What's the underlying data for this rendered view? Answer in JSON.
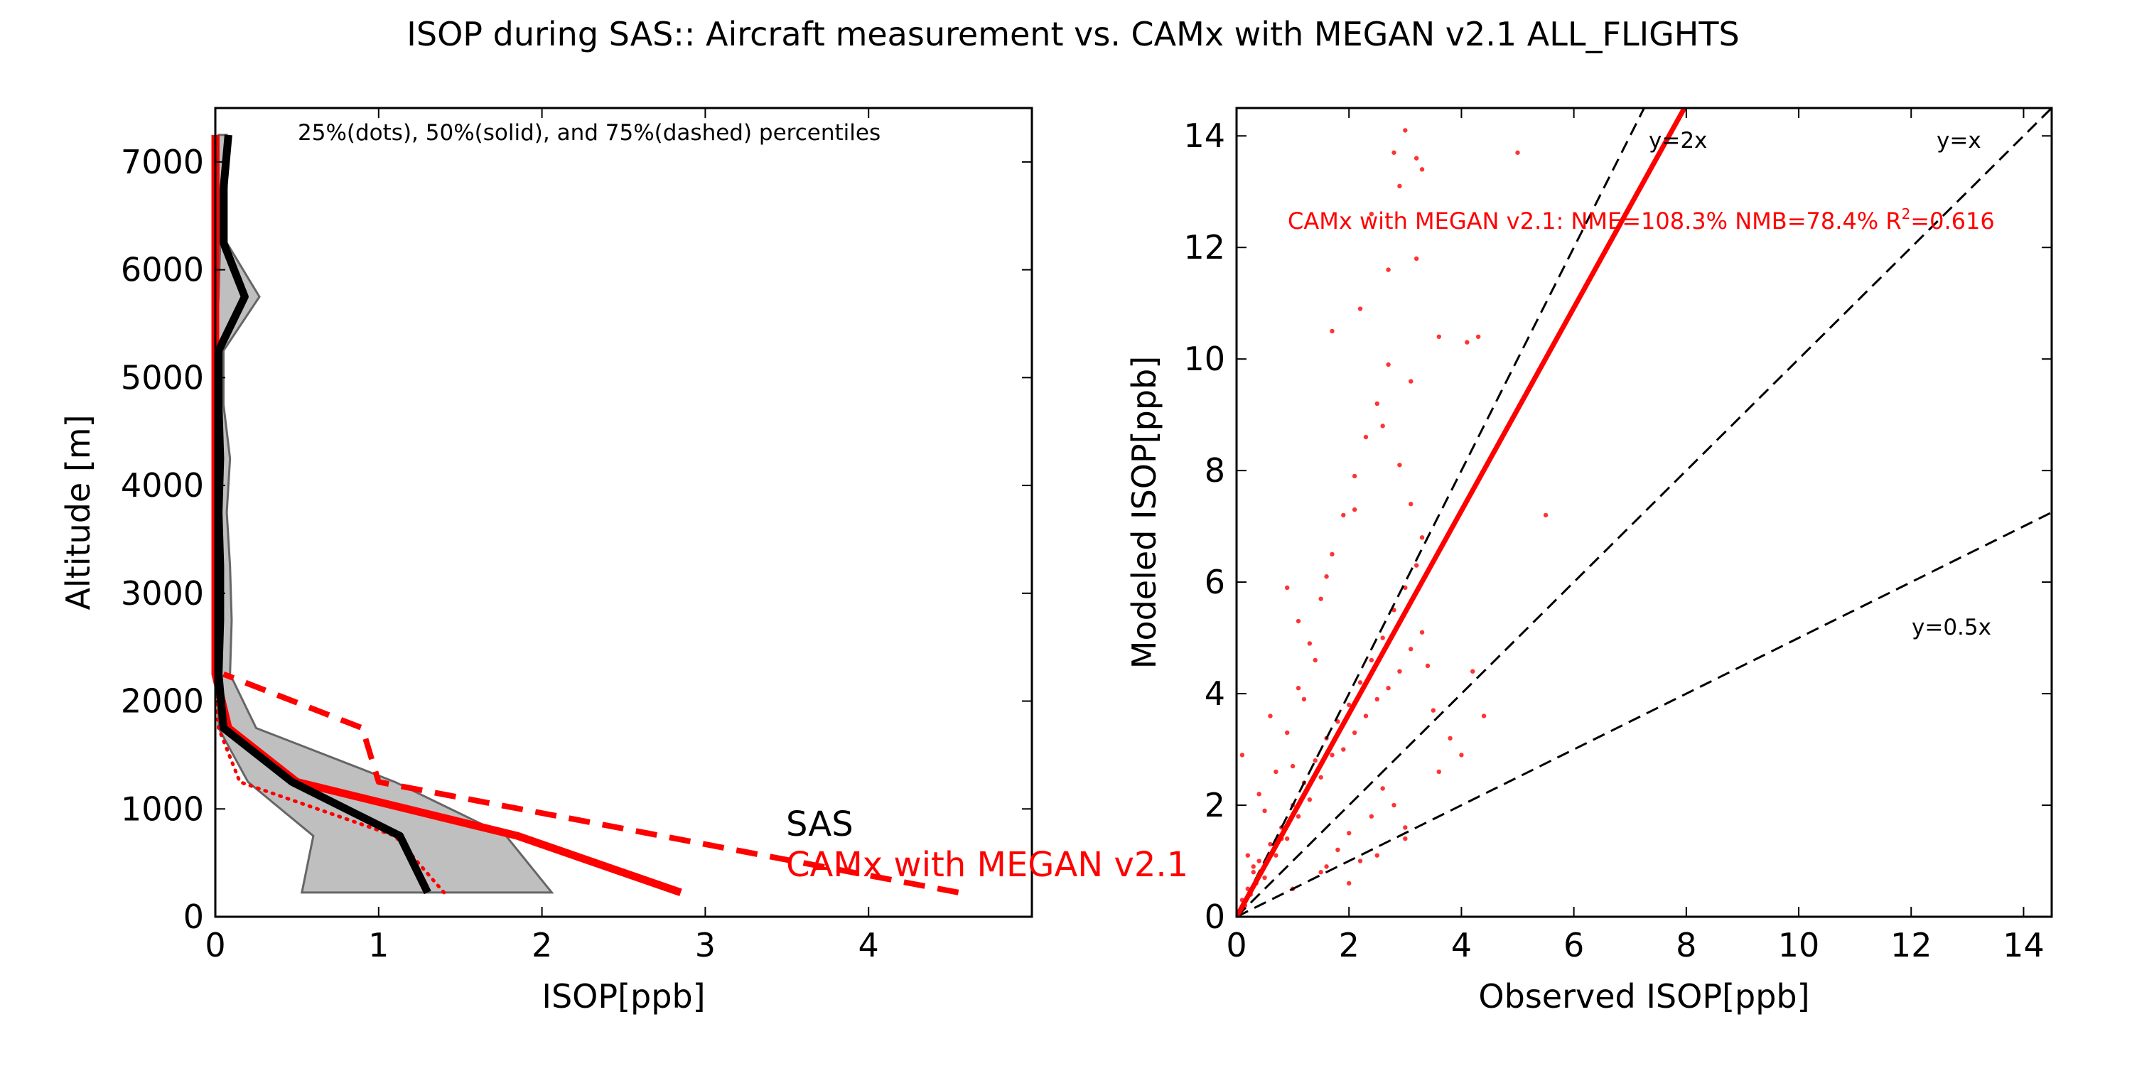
{
  "figure": {
    "title": "ISOP during SAS:: Aircraft measurement vs. CAMx with MEGAN v2.1 ALL_FLIGHTS"
  },
  "colors": {
    "obs": "#000000",
    "model": "#ff0000",
    "band_fill": "#bfbfbf",
    "band_edge": "#666666",
    "ref_lines": "#000000"
  },
  "chart_data": [
    {
      "type": "line",
      "xlabel": "ISOP[ppb]",
      "ylabel": "Altitude [m]",
      "xlim": [
        0,
        5
      ],
      "ylim": [
        0,
        7500
      ],
      "x_ticks": [
        0,
        1,
        2,
        3,
        4
      ],
      "y_ticks": [
        0,
        1000,
        2000,
        3000,
        4000,
        5000,
        6000,
        7000
      ],
      "grid": false,
      "annotation": "25%(dots), 50%(solid), and 75%(dashed) percentiles",
      "legend": {
        "placement": "bottom-right",
        "entries": [
          {
            "label": "SAS",
            "color": "#000000"
          },
          {
            "label": "CAMx with MEGAN v2.1",
            "color": "#ff0000"
          }
        ]
      },
      "obs_band": {
        "altitude": [
          225,
          750,
          1250,
          1750,
          2250,
          2750,
          3250,
          3750,
          4250,
          4750,
          5250,
          5750,
          6250,
          6750,
          7250
        ],
        "p25": [
          0.53,
          0.6,
          0.2,
          0.02,
          0.01,
          0.01,
          0.0,
          0.0,
          0.0,
          0.0,
          0.0,
          0.02,
          0.03,
          0.02,
          0.02
        ],
        "p75": [
          2.06,
          1.78,
          1.1,
          0.25,
          0.09,
          0.1,
          0.09,
          0.07,
          0.09,
          0.05,
          0.05,
          0.27,
          0.07,
          0.07,
          0.07
        ]
      },
      "series": [
        {
          "name": "SAS",
          "stat": "50%",
          "altitude": [
            225,
            750,
            1250,
            1750,
            2250,
            2750,
            3250,
            3750,
            4250,
            4750,
            5250,
            5750,
            6250,
            6750,
            7250
          ],
          "values": [
            1.3,
            1.13,
            0.47,
            0.05,
            0.02,
            0.03,
            0.03,
            0.02,
            0.03,
            0.02,
            0.02,
            0.18,
            0.05,
            0.05,
            0.08
          ]
        },
        {
          "name": "CAMx with MEGAN v2.1",
          "stat": "25%",
          "altitude": [
            225,
            750,
            1250,
            1750,
            2250
          ],
          "values": [
            1.4,
            1.1,
            0.15,
            0.02,
            0.0
          ]
        },
        {
          "name": "CAMx with MEGAN v2.1",
          "stat": "50%",
          "altitude": [
            225,
            750,
            1250,
            1750,
            2250,
            2750,
            3250,
            3750,
            4250,
            4750,
            5250,
            5750,
            6250,
            6750,
            7250
          ],
          "values": [
            2.85,
            1.85,
            0.5,
            0.08,
            0.0,
            0.0,
            0.0,
            0.0,
            0.0,
            0.0,
            0.0,
            0.0,
            0.0,
            0.0,
            0.0
          ]
        },
        {
          "name": "CAMx with MEGAN v2.1",
          "stat": "75%",
          "altitude": [
            225,
            1250,
            1750,
            2250
          ],
          "values": [
            4.55,
            1.0,
            0.9,
            0.05
          ]
        }
      ]
    },
    {
      "type": "scatter",
      "xlabel": "Observed ISOP[ppb]",
      "ylabel": "Modeled ISOP[ppb]",
      "xlim": [
        0,
        14.5
      ],
      "ylim": [
        0,
        14.5
      ],
      "x_ticks": [
        0,
        2,
        4,
        6,
        8,
        10,
        12,
        14
      ],
      "y_ticks": [
        0,
        2,
        4,
        6,
        8,
        10,
        12,
        14
      ],
      "grid": false,
      "stats_label": "CAMx with MEGAN v2.1: NME=108.3% NMB=78.4% R",
      "stats_sup": "2",
      "stats_value": "=0.616",
      "regression": {
        "slope": 1.82,
        "intercept": 0.0
      },
      "reference_lines": [
        {
          "label": "y=2x",
          "slope": 2
        },
        {
          "label": "y=x",
          "slope": 1
        },
        {
          "label": "y=0.5x",
          "slope": 0.5
        }
      ],
      "points": {
        "x": [
          0.05,
          0.1,
          0.15,
          0.2,
          0.25,
          0.3,
          0.35,
          0.4,
          0.5,
          0.6,
          0.7,
          0.8,
          0.9,
          1.0,
          1.1,
          1.2,
          1.3,
          1.4,
          1.5,
          1.6,
          1.7,
          1.8,
          1.9,
          2.0,
          2.1,
          2.2,
          2.3,
          2.4,
          2.5,
          2.6,
          2.7,
          2.8,
          2.9,
          3.0,
          3.1,
          3.2,
          3.3,
          3.4,
          3.5,
          3.6,
          3.8,
          4.0,
          4.2,
          4.4,
          0.2,
          0.3,
          0.5,
          0.7,
          0.9,
          1.1,
          1.3,
          1.5,
          1.7,
          1.9,
          2.1,
          2.3,
          2.5,
          2.7,
          2.9,
          3.1,
          3.3,
          0.1,
          0.4,
          0.6,
          0.8,
          1.0,
          1.2,
          1.4,
          1.6,
          1.8,
          2.0,
          2.2,
          2.4,
          2.6,
          2.8,
          3.0,
          1.0,
          1.5,
          2.0,
          2.5,
          3.0,
          1.1,
          1.6,
          2.1,
          2.6,
          3.1,
          3.6,
          2.2,
          2.7,
          3.2,
          2.4,
          2.9,
          3.3,
          2.8,
          3.0,
          3.2,
          5.0,
          5.5,
          4.1,
          4.3,
          1.7,
          0.9
        ],
        "y": [
          0.1,
          0.3,
          0.2,
          0.5,
          0.4,
          0.8,
          0.6,
          1.0,
          0.7,
          1.3,
          1.1,
          1.6,
          1.4,
          2.0,
          1.8,
          2.4,
          2.1,
          2.8,
          2.5,
          3.2,
          2.9,
          3.5,
          3.0,
          3.8,
          3.3,
          4.2,
          3.6,
          4.6,
          3.9,
          5.0,
          4.1,
          5.5,
          4.4,
          5.9,
          4.8,
          6.3,
          5.1,
          4.5,
          3.7,
          2.6,
          3.2,
          2.9,
          4.4,
          3.6,
          1.1,
          0.9,
          1.9,
          2.6,
          3.3,
          4.1,
          4.9,
          5.7,
          6.5,
          7.2,
          7.9,
          8.6,
          9.2,
          9.9,
          8.1,
          7.4,
          6.8,
          2.9,
          2.2,
          3.6,
          1.4,
          2.7,
          3.9,
          4.6,
          0.9,
          1.2,
          1.5,
          1.0,
          1.8,
          2.3,
          2.0,
          1.6,
          0.5,
          0.8,
          0.6,
          1.1,
          1.4,
          5.3,
          6.1,
          7.3,
          8.8,
          9.6,
          10.4,
          10.9,
          11.6,
          11.8,
          12.6,
          13.1,
          13.4,
          13.7,
          14.1,
          13.6,
          13.7,
          7.2,
          10.3,
          10.4,
          10.5,
          5.9
        ]
      }
    }
  ]
}
